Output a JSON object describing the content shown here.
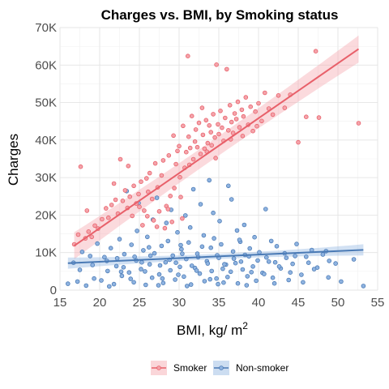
{
  "chart_data": {
    "type": "scatter",
    "title": "Charges vs. BMI, by Smoking status",
    "xlabel": "BMI, kg/ m",
    "xlabel_superscript": "2",
    "ylabel": "Charges",
    "xlim": [
      15,
      55
    ],
    "ylim": [
      0,
      70000
    ],
    "x_ticks": [
      15,
      20,
      25,
      30,
      35,
      40,
      45,
      50,
      55
    ],
    "y_ticks": [
      0,
      10000,
      20000,
      30000,
      40000,
      50000,
      60000,
      70000
    ],
    "y_tick_labels": [
      "0",
      "10K",
      "20K",
      "30K",
      "40K",
      "50K",
      "60K",
      "70K"
    ],
    "grid": true,
    "legend_position": "bottom",
    "series": [
      {
        "name": "Smoker",
        "color": "#e8606a",
        "fill": "#f4a3aa",
        "trend": {
          "type": "linear",
          "x": [
            15,
            55
          ],
          "y": [
            9200,
            67800
          ]
        },
        "points": [
          [
            16.8,
            12200
          ],
          [
            17.3,
            14800
          ],
          [
            17.6,
            32900
          ],
          [
            18.2,
            13800
          ],
          [
            18.6,
            15600
          ],
          [
            19.0,
            14200
          ],
          [
            19.4,
            17200
          ],
          [
            19.8,
            16400
          ],
          [
            20.3,
            18900
          ],
          [
            20.8,
            21800
          ],
          [
            21.1,
            19300
          ],
          [
            21.5,
            22700
          ],
          [
            22.0,
            24100
          ],
          [
            22.3,
            20400
          ],
          [
            22.6,
            34900
          ],
          [
            22.9,
            23800
          ],
          [
            23.2,
            26600
          ],
          [
            23.5,
            21900
          ],
          [
            23.8,
            24900
          ],
          [
            24.1,
            19800
          ],
          [
            24.3,
            27800
          ],
          [
            24.6,
            23100
          ],
          [
            24.9,
            25600
          ],
          [
            25.2,
            28900
          ],
          [
            25.4,
            17300
          ],
          [
            25.6,
            21200
          ],
          [
            25.9,
            29800
          ],
          [
            26.1,
            26200
          ],
          [
            26.3,
            31200
          ],
          [
            26.6,
            24300
          ],
          [
            26.8,
            18600
          ],
          [
            27.0,
            33800
          ],
          [
            27.3,
            27400
          ],
          [
            27.5,
            21000
          ],
          [
            27.8,
            30600
          ],
          [
            28.0,
            34600
          ],
          [
            28.2,
            16500
          ],
          [
            28.4,
            22400
          ],
          [
            28.7,
            35900
          ],
          [
            28.9,
            25100
          ],
          [
            29.1,
            18200
          ],
          [
            29.3,
            41200
          ],
          [
            29.6,
            33600
          ],
          [
            29.8,
            37100
          ],
          [
            30.0,
            38400
          ],
          [
            30.2,
            24800
          ],
          [
            30.4,
            19100
          ],
          [
            30.5,
            43800
          ],
          [
            30.7,
            32600
          ],
          [
            30.9,
            36800
          ],
          [
            31.1,
            62400
          ],
          [
            31.2,
            40900
          ],
          [
            31.4,
            37900
          ],
          [
            31.6,
            46400
          ],
          [
            31.8,
            34900
          ],
          [
            32.0,
            39600
          ],
          [
            32.1,
            42800
          ],
          [
            32.3,
            38100
          ],
          [
            32.5,
            44600
          ],
          [
            32.7,
            36300
          ],
          [
            32.9,
            48600
          ],
          [
            33.0,
            41400
          ],
          [
            33.2,
            37700
          ],
          [
            33.4,
            45300
          ],
          [
            33.6,
            39200
          ],
          [
            33.8,
            43900
          ],
          [
            34.0,
            42100
          ],
          [
            34.1,
            38600
          ],
          [
            34.3,
            46900
          ],
          [
            34.5,
            40700
          ],
          [
            34.7,
            60100
          ],
          [
            34.9,
            44200
          ],
          [
            35.0,
            41600
          ],
          [
            35.2,
            47800
          ],
          [
            35.4,
            43300
          ],
          [
            35.6,
            39800
          ],
          [
            35.8,
            45900
          ],
          [
            36.0,
            58900
          ],
          [
            36.2,
            42600
          ],
          [
            36.4,
            49300
          ],
          [
            36.6,
            44800
          ],
          [
            36.8,
            41900
          ],
          [
            37.0,
            47100
          ],
          [
            37.2,
            45600
          ],
          [
            37.4,
            50200
          ],
          [
            37.6,
            43400
          ],
          [
            37.9,
            48100
          ],
          [
            38.1,
            46300
          ],
          [
            38.4,
            51400
          ],
          [
            38.7,
            44100
          ],
          [
            39.0,
            48900
          ],
          [
            39.3,
            42400
          ],
          [
            39.6,
            47600
          ],
          [
            40.0,
            49800
          ],
          [
            40.4,
            45100
          ],
          [
            40.8,
            52600
          ],
          [
            41.3,
            48400
          ],
          [
            41.8,
            46800
          ],
          [
            42.5,
            51900
          ],
          [
            43.3,
            48600
          ],
          [
            44.0,
            52100
          ],
          [
            45.0,
            39400
          ],
          [
            46.0,
            46200
          ],
          [
            47.2,
            63700
          ],
          [
            47.6,
            46000
          ],
          [
            52.6,
            44500
          ],
          [
            18.4,
            21200
          ],
          [
            21.8,
            28400
          ],
          [
            23.6,
            33100
          ],
          [
            25.0,
            22200
          ],
          [
            26.0,
            19700
          ],
          [
            27.2,
            16900
          ],
          [
            28.6,
            21600
          ],
          [
            29.4,
            27200
          ],
          [
            30.1,
            30100
          ],
          [
            31.3,
            33400
          ],
          [
            33.5,
            36900
          ],
          [
            34.6,
            35200
          ],
          [
            36.5,
            40200
          ],
          [
            38.0,
            41100
          ],
          [
            39.8,
            43700
          ]
        ]
      },
      {
        "name": "Non-smoker",
        "color": "#4a7ab5",
        "fill": "#8fb3e0",
        "trend": {
          "type": "linear",
          "x": [
            15,
            55
          ],
          "y": [
            7100,
            10900
          ]
        },
        "points": [
          [
            16.0,
            1700
          ],
          [
            16.7,
            7300
          ],
          [
            17.2,
            2300
          ],
          [
            17.8,
            10200
          ],
          [
            18.3,
            1200
          ],
          [
            18.8,
            9100
          ],
          [
            19.3,
            3100
          ],
          [
            19.7,
            12400
          ],
          [
            20.2,
            2600
          ],
          [
            20.6,
            8800
          ],
          [
            21.0,
            5100
          ],
          [
            21.4,
            11200
          ],
          [
            21.8,
            1600
          ],
          [
            22.1,
            6400
          ],
          [
            22.5,
            13600
          ],
          [
            22.8,
            3800
          ],
          [
            23.1,
            9600
          ],
          [
            23.4,
            26400
          ],
          [
            23.7,
            4700
          ],
          [
            24.0,
            12100
          ],
          [
            24.3,
            2100
          ],
          [
            24.6,
            7900
          ],
          [
            24.9,
            23200
          ],
          [
            25.2,
            5600
          ],
          [
            25.5,
            10600
          ],
          [
            25.8,
            1400
          ],
          [
            26.0,
            14200
          ],
          [
            26.3,
            6900
          ],
          [
            26.6,
            3300
          ],
          [
            26.9,
            9800
          ],
          [
            27.2,
            24600
          ],
          [
            27.5,
            4200
          ],
          [
            27.8,
            11800
          ],
          [
            28.0,
            1900
          ],
          [
            28.3,
            7400
          ],
          [
            28.6,
            13100
          ],
          [
            28.9,
            5300
          ],
          [
            29.2,
            9200
          ],
          [
            29.5,
            2800
          ],
          [
            29.8,
            15400
          ],
          [
            30.1,
            6200
          ],
          [
            30.3,
            10900
          ],
          [
            30.6,
            3600
          ],
          [
            30.9,
            8300
          ],
          [
            31.2,
            12700
          ],
          [
            31.5,
            1500
          ],
          [
            31.8,
            26900
          ],
          [
            32.0,
            5900
          ],
          [
            32.3,
            9700
          ],
          [
            32.6,
            4400
          ],
          [
            32.9,
            11600
          ],
          [
            33.2,
            2400
          ],
          [
            33.5,
            7700
          ],
          [
            33.8,
            29300
          ],
          [
            34.1,
            5100
          ],
          [
            34.4,
            13800
          ],
          [
            34.7,
            3100
          ],
          [
            35.0,
            8600
          ],
          [
            35.3,
            12200
          ],
          [
            35.6,
            2000
          ],
          [
            35.9,
            6800
          ],
          [
            36.2,
            27800
          ],
          [
            36.5,
            4900
          ],
          [
            36.8,
            10300
          ],
          [
            37.1,
            7200
          ],
          [
            37.4,
            1800
          ],
          [
            37.7,
            12900
          ],
          [
            38.0,
            5500
          ],
          [
            38.3,
            9400
          ],
          [
            38.6,
            3700
          ],
          [
            38.9,
            11100
          ],
          [
            39.3,
            6300
          ],
          [
            39.7,
            2500
          ],
          [
            40.1,
            10100
          ],
          [
            40.5,
            4600
          ],
          [
            40.9,
            21600
          ],
          [
            41.3,
            7600
          ],
          [
            41.8,
            3300
          ],
          [
            42.3,
            11700
          ],
          [
            42.8,
            5800
          ],
          [
            43.3,
            9800
          ],
          [
            43.8,
            2700
          ],
          [
            44.3,
            7000
          ],
          [
            44.8,
            12300
          ],
          [
            45.4,
            4100
          ],
          [
            46.0,
            8900
          ],
          [
            46.7,
            10700
          ],
          [
            47.4,
            6000
          ],
          [
            48.1,
            9500
          ],
          [
            48.9,
            7800
          ],
          [
            50.4,
            2300
          ],
          [
            52.0,
            8200
          ],
          [
            53.2,
            1100
          ],
          [
            17.5,
            5400
          ],
          [
            19.1,
            6700
          ],
          [
            20.9,
            7800
          ],
          [
            22.2,
            8500
          ],
          [
            23.0,
            6100
          ],
          [
            24.4,
            8900
          ],
          [
            25.3,
            7400
          ],
          [
            26.4,
            9200
          ],
          [
            27.6,
            6600
          ],
          [
            28.8,
            8100
          ],
          [
            29.6,
            7300
          ],
          [
            30.4,
            9700
          ],
          [
            31.6,
            6500
          ],
          [
            32.4,
            8800
          ],
          [
            33.6,
            7100
          ],
          [
            34.8,
            9300
          ],
          [
            35.7,
            6900
          ],
          [
            36.9,
            8400
          ],
          [
            37.8,
            7600
          ],
          [
            38.8,
            9000
          ],
          [
            39.9,
            7900
          ],
          [
            41.0,
            8700
          ],
          [
            42.1,
            7400
          ],
          [
            43.5,
            8600
          ],
          [
            44.6,
            9100
          ],
          [
            46.3,
            7300
          ],
          [
            48.5,
            10400
          ],
          [
            49.7,
            7100
          ],
          [
            24.7,
            15800
          ],
          [
            28.4,
            17900
          ],
          [
            31.4,
            16700
          ],
          [
            33.1,
            14600
          ],
          [
            35.1,
            18400
          ],
          [
            37.3,
            15900
          ],
          [
            39.5,
            14100
          ],
          [
            29.0,
            21400
          ],
          [
            32.7,
            22900
          ],
          [
            36.6,
            24200
          ],
          [
            26.7,
            18800
          ],
          [
            30.8,
            19900
          ],
          [
            34.3,
            20600
          ],
          [
            38.2,
            17400
          ],
          [
            22.7,
            4900
          ],
          [
            21.2,
            1000
          ],
          [
            27.4,
            1300
          ],
          [
            31.0,
            1100
          ],
          [
            34.9,
            1600
          ],
          [
            38.5,
            1300
          ],
          [
            42.0,
            1800
          ],
          [
            45.6,
            2100
          ],
          [
            48.8,
            3400
          ],
          [
            27.9,
            3100
          ],
          [
            33.9,
            2900
          ],
          [
            36.1,
            3500
          ],
          [
            40.7,
            4300
          ],
          [
            44.0,
            4700
          ],
          [
            30.2,
            12000
          ],
          [
            26.2,
            11400
          ],
          [
            34.0,
            11300
          ],
          [
            37.6,
            13400
          ],
          [
            41.6,
            13100
          ],
          [
            29.9,
            4100
          ],
          [
            32.2,
            5200
          ],
          [
            25.7,
            5000
          ],
          [
            23.9,
            3000
          ],
          [
            35.5,
            5700
          ],
          [
            39.1,
            4800
          ],
          [
            42.6,
            6300
          ],
          [
            47.0,
            5600
          ]
        ]
      }
    ]
  }
}
